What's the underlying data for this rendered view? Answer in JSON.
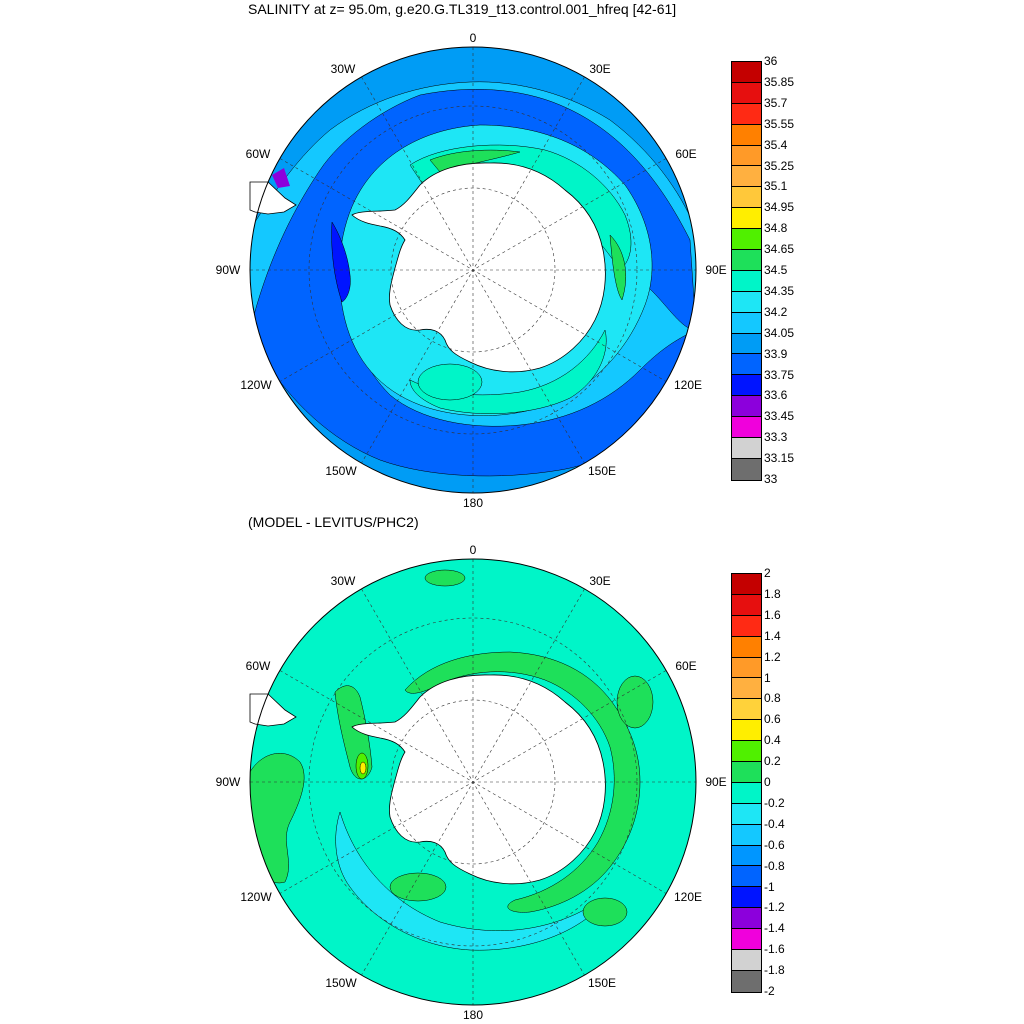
{
  "top_title": "SALINITY at z=  95.0m, g.e20.G.TL319_t13.control.001_hfreq [42-61]",
  "bottom_title": "(MODEL - LEVITUS/PHC2)",
  "lon_labels": {
    "deg0": "0",
    "w30": "30W",
    "e30": "30E",
    "w60": "60W",
    "e60": "60E",
    "w90": "90W",
    "e90": "90E",
    "w120": "120W",
    "e120": "120E",
    "w150": "150W",
    "e150": "150E",
    "deg180": "180"
  },
  "top_colorbar": {
    "labels": [
      "36",
      "35.85",
      "35.7",
      "35.55",
      "35.4",
      "35.25",
      "35.1",
      "34.95",
      "34.8",
      "34.65",
      "34.5",
      "34.35",
      "34.2",
      "34.05",
      "33.9",
      "33.75",
      "33.6",
      "33.45",
      "33.3",
      "33.15",
      "33"
    ],
    "colors": [
      "#c40000",
      "#e60f0f",
      "#ff2a14",
      "#ff8000",
      "#ff9a28",
      "#ffb040",
      "#ffc83a",
      "#ffee00",
      "#50f000",
      "#1ee05a",
      "#00f5c8",
      "#1ee6f5",
      "#14c8ff",
      "#009cf5",
      "#0064ff",
      "#0014ff",
      "#8c00dc",
      "#f000dc",
      "#d2d2d2",
      "#6e6e6e"
    ]
  },
  "bottom_colorbar": {
    "labels": [
      "2",
      "1.8",
      "1.6",
      "1.4",
      "1.2",
      "1",
      "0.8",
      "0.6",
      "0.4",
      "0.2",
      "0",
      "-0.2",
      "-0.4",
      "-0.6",
      "-0.8",
      "-1",
      "-1.2",
      "-1.4",
      "-1.6",
      "-1.8",
      "-2"
    ],
    "colors": [
      "#c40000",
      "#e60f0f",
      "#ff2a14",
      "#ff8000",
      "#ff9a28",
      "#ffb040",
      "#ffd23a",
      "#ffee00",
      "#50f000",
      "#1ee05a",
      "#00f5c8",
      "#1ee6f5",
      "#14c8ff",
      "#0096ff",
      "#0064ff",
      "#0014ff",
      "#8c00dc",
      "#f000dc",
      "#d2d2d2",
      "#6e6e6e"
    ]
  }
}
